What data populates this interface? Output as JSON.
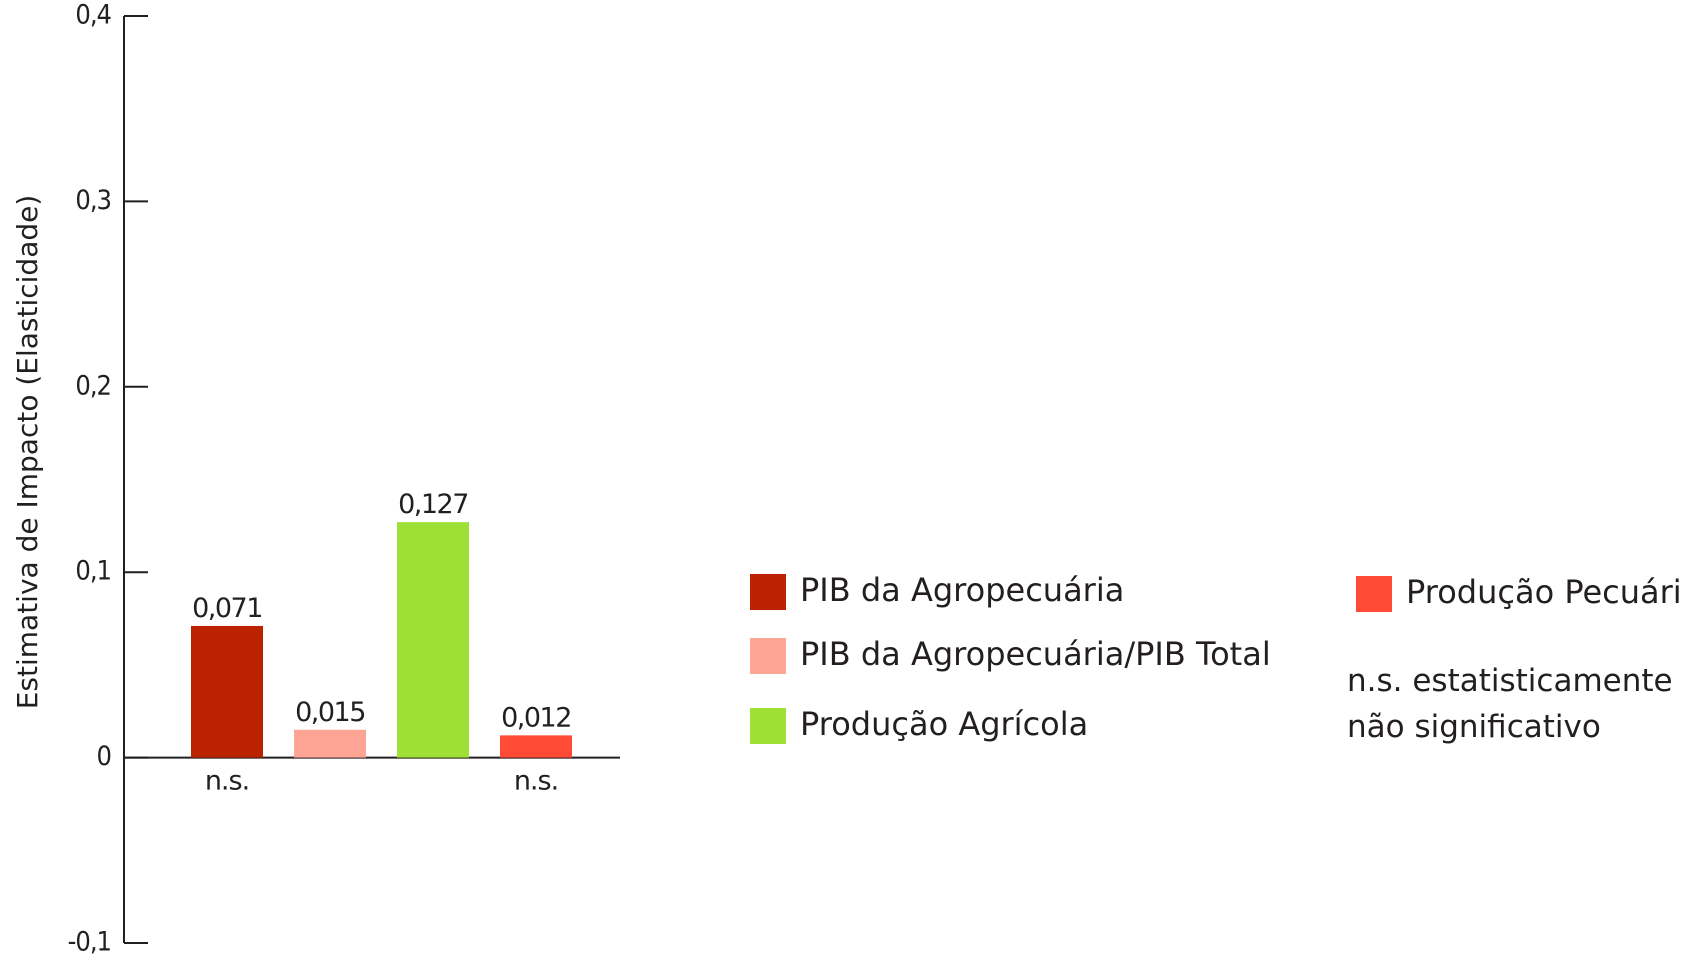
{
  "chart_data": {
    "type": "bar",
    "title": "",
    "xlabel": "",
    "ylabel": "Estimativa de Impacto (Elasticidade)",
    "ylim": [
      -0.1,
      0.4
    ],
    "yticks": [
      {
        "value": 0.4,
        "label": "0,4"
      },
      {
        "value": 0.3,
        "label": "0,3"
      },
      {
        "value": 0.2,
        "label": "0,2"
      },
      {
        "value": 0.1,
        "label": "0,1"
      },
      {
        "value": 0,
        "label": "0"
      },
      {
        "value": -0.1,
        "label": "-0,1"
      }
    ],
    "grid": false,
    "legend_position": "right",
    "bars": [
      {
        "name": "PIB da Agropecuária",
        "value": 0.071,
        "label": "0,071",
        "significance": "n.s.",
        "color": "#bb2200"
      },
      {
        "name": "PIB da Agropecuária/PIB Total",
        "value": 0.015,
        "label": "0,015",
        "significance": "",
        "color": "#fda495"
      },
      {
        "name": "Produção Agrícola",
        "value": 0.127,
        "label": "0,127",
        "significance": "",
        "color": "#9fe036"
      },
      {
        "name": "Produção Pecuária",
        "value": 0.012,
        "label": "0,012",
        "significance": "n.s.",
        "color": "#ff4b35"
      }
    ],
    "note_lines": [
      "n.s. estatisticamente",
      "não significativo"
    ]
  }
}
